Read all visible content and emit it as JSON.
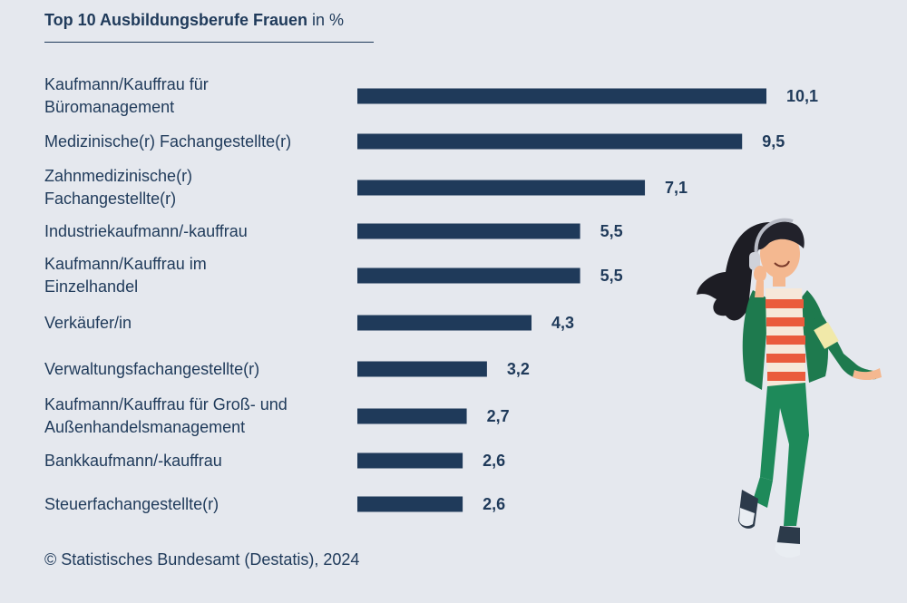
{
  "chart_data": {
    "type": "bar",
    "orientation": "horizontal",
    "title": "Top 10 Ausbildungsberufe Frauen",
    "title_unit": "in %",
    "categories": [
      "Kaufmann/Kauffrau für Büromanagement",
      "Medizinische(r) Fachangestellte(r)",
      "Zahnmedizinische(r) Fachangestellte(r)",
      "Industriekaufmann/-kauffrau",
      "Kaufmann/Kauffrau im Einzelhandel",
      "Verkäufer/in",
      "Verwaltungsfachangestellte(r)",
      "Kaufmann/Kauffrau für Groß- und Außenhandelsmanagement",
      "Bankkaufmann/-kauffrau",
      "Steuerfachangestellte(r)"
    ],
    "values": [
      10.1,
      9.5,
      7.1,
      5.5,
      5.5,
      4.3,
      3.2,
      2.7,
      2.6,
      2.6
    ],
    "value_labels": [
      "10,1",
      "9,5",
      "7,1",
      "5,5",
      "5,5",
      "4,3",
      "3,2",
      "2,7",
      "2,6",
      "2,6"
    ],
    "xlim": [
      0,
      10.1
    ],
    "grid": false,
    "bar_color": "#1f3a5a"
  },
  "source": "© Statistisches Bundesamt (Destatis), 2024"
}
